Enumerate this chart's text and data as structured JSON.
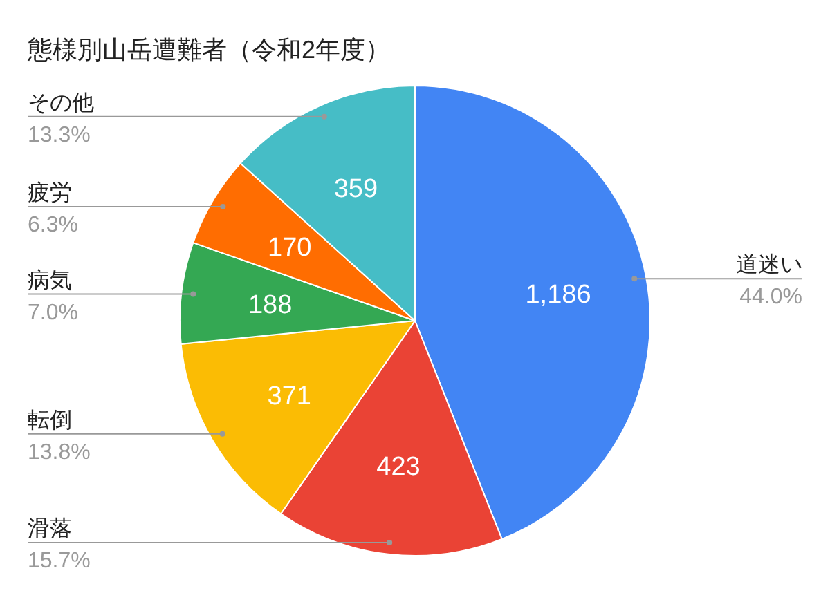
{
  "chart_data": {
    "type": "pie",
    "title": "態様別山岳遭難者（令和2年度）",
    "categories": [
      "道迷い",
      "滑落",
      "転倒",
      "病気",
      "疲労",
      "その他"
    ],
    "values": [
      1186,
      423,
      371,
      188,
      170,
      359
    ],
    "value_labels": [
      "1,186",
      "423",
      "371",
      "188",
      "170",
      "359"
    ],
    "colors": [
      "#4285f4",
      "#ea4335",
      "#fbbc04",
      "#34a853",
      "#ff6d01",
      "#46bdc6"
    ],
    "annotations": [
      "44.0%",
      "15.7%",
      "13.8%",
      "7.0%",
      "6.3%",
      "13.3%"
    ]
  }
}
